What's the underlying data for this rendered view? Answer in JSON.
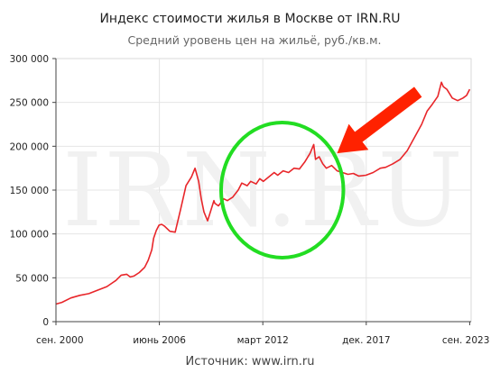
{
  "chart_data": {
    "type": "line",
    "title": "Индекс стоимости жилья в Москве от IRN.RU",
    "subtitle": "Средний уровень цен на жильё, руб./кв.м.",
    "source": "Источник: www.irn.ru",
    "watermark": "IRN.RU",
    "xlabel": "",
    "ylabel": "",
    "ylim": [
      0,
      300000
    ],
    "xlim": [
      2000.67,
      2023.75
    ],
    "grid": true,
    "y_ticks": [
      0,
      50000,
      100000,
      150000,
      200000,
      250000,
      300000
    ],
    "y_tick_labels": [
      "0",
      "50 000",
      "100 000",
      "150 000",
      "200 000",
      "250 000",
      "300 000"
    ],
    "x_ticks": [
      {
        "value": 2000.67,
        "label": "сен. 2000"
      },
      {
        "value": 2006.42,
        "label": "июнь 2006"
      },
      {
        "value": 2012.17,
        "label": "март 2012"
      },
      {
        "value": 2017.92,
        "label": "дек. 2017"
      },
      {
        "value": 2023.67,
        "label": "сен. 2023"
      }
    ],
    "series": [
      {
        "color": "#e8262a",
        "x": [
          2000.67,
          2001.0,
          2001.5,
          2002.0,
          2002.5,
          2003.0,
          2003.5,
          2004.0,
          2004.3,
          2004.6,
          2004.8,
          2005.0,
          2005.3,
          2005.6,
          2005.8,
          2006.0,
          2006.1,
          2006.25,
          2006.4,
          2006.55,
          2006.7,
          2007.0,
          2007.3,
          2007.6,
          2007.9,
          2008.2,
          2008.4,
          2008.6,
          2008.75,
          2008.9,
          2009.1,
          2009.3,
          2009.45,
          2009.5,
          2009.7,
          2010.0,
          2010.2,
          2010.5,
          2010.8,
          2011.0,
          2011.3,
          2011.5,
          2011.8,
          2012.0,
          2012.2,
          2012.5,
          2012.8,
          2013.0,
          2013.3,
          2013.6,
          2013.9,
          2014.2,
          2014.5,
          2014.8,
          2015.0,
          2015.1,
          2015.3,
          2015.5,
          2015.7,
          2016.0,
          2016.3,
          2016.6,
          2016.9,
          2017.2,
          2017.5,
          2017.9,
          2018.3,
          2018.7,
          2019.0,
          2019.4,
          2019.8,
          2020.2,
          2020.6,
          2021.0,
          2021.3,
          2021.6,
          2021.9,
          2022.1,
          2022.2,
          2022.4,
          2022.7,
          2023.0,
          2023.3,
          2023.5,
          2023.67
        ],
        "y": [
          20000,
          22000,
          27000,
          30000,
          32000,
          36000,
          40000,
          47000,
          53000,
          54000,
          51000,
          52000,
          56000,
          62000,
          70000,
          82000,
          95000,
          104000,
          110000,
          111000,
          109000,
          103000,
          102000,
          128000,
          155000,
          165000,
          175000,
          160000,
          140000,
          125000,
          115000,
          128000,
          138000,
          135000,
          132000,
          140000,
          138000,
          142000,
          150000,
          158000,
          155000,
          160000,
          157000,
          163000,
          160000,
          165000,
          170000,
          167000,
          172000,
          170000,
          175000,
          174000,
          182000,
          192000,
          202000,
          185000,
          188000,
          180000,
          175000,
          178000,
          172000,
          170000,
          168000,
          169000,
          166000,
          167000,
          170000,
          175000,
          176000,
          180000,
          185000,
          195000,
          210000,
          225000,
          240000,
          248000,
          257000,
          273000,
          268000,
          265000,
          255000,
          252000,
          255000,
          258000,
          265000
        ]
      }
    ],
    "annotations": [
      {
        "type": "ellipse",
        "color": "#22dd22",
        "x_center": 2013.25,
        "y_center": 150000,
        "x_radius": 3.4,
        "y_radius": 77000
      },
      {
        "type": "arrow",
        "color": "#ff2200",
        "from_x": 2020.8,
        "from_y": 262000,
        "to_x": 2016.3,
        "to_y": 192000
      }
    ]
  }
}
